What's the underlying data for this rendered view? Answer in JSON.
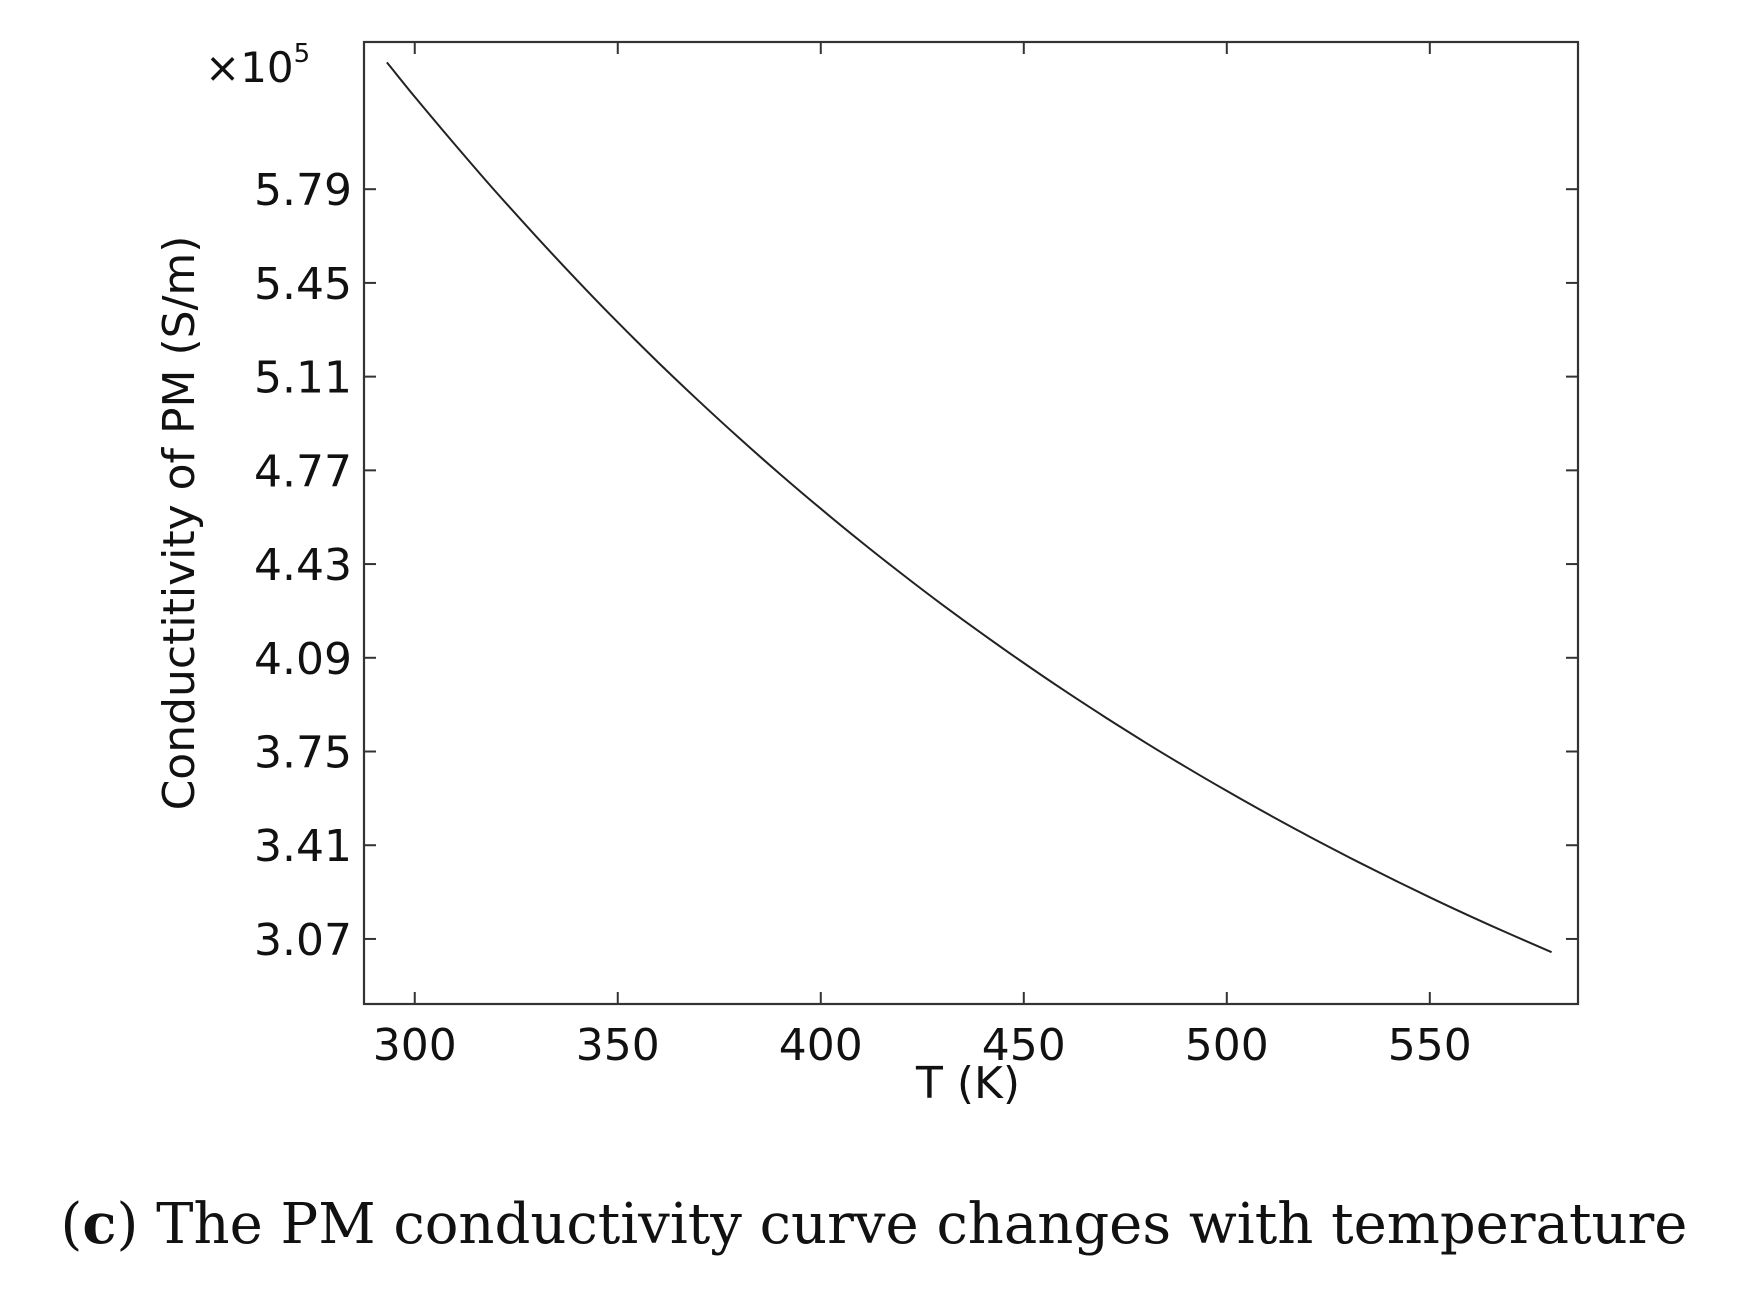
{
  "chart_data": {
    "type": "line",
    "title": "",
    "xlabel": "T (K)",
    "ylabel": "Conductitivity of PM (S/m)",
    "y_multiplier": {
      "base": "×10",
      "exponent": "5"
    },
    "x_ticks": [
      300,
      350,
      400,
      450,
      500,
      550
    ],
    "x_tick_labels": [
      "300",
      "350",
      "400",
      "450",
      "500",
      "550"
    ],
    "y_ticks": [
      3.07,
      3.41,
      3.75,
      4.09,
      4.43,
      4.77,
      5.11,
      5.45,
      5.79
    ],
    "y_tick_labels": [
      "3.07",
      "3.41",
      "3.75",
      "4.09",
      "4.43",
      "4.77",
      "5.11",
      "5.45",
      "5.79"
    ],
    "xlim": [
      287.5,
      586.5
    ],
    "ylim": [
      2.834,
      6.324
    ],
    "grid": false,
    "legend": "none",
    "series": [
      {
        "name": "PM conductivity",
        "color": "#222222",
        "x": [
          293.15,
          300,
          310,
          320,
          330,
          340,
          350,
          360,
          370,
          380,
          390,
          400,
          410,
          420,
          430,
          440,
          450,
          460,
          470,
          480,
          490,
          500,
          510,
          520,
          530,
          540,
          550,
          560,
          570,
          580
        ],
        "y": [
          6.25,
          6.125,
          5.95,
          5.78,
          5.617,
          5.459,
          5.307,
          5.161,
          5.021,
          4.886,
          4.756,
          4.631,
          4.51,
          4.394,
          4.282,
          4.175,
          4.071,
          3.971,
          3.875,
          3.782,
          3.693,
          3.607,
          3.524,
          3.444,
          3.367,
          3.293,
          3.221,
          3.152,
          3.086,
          3.022
        ]
      }
    ]
  },
  "caption": {
    "prefix": "(",
    "letter": "c",
    "text": ") The PM conductivity curve changes with temperature"
  }
}
